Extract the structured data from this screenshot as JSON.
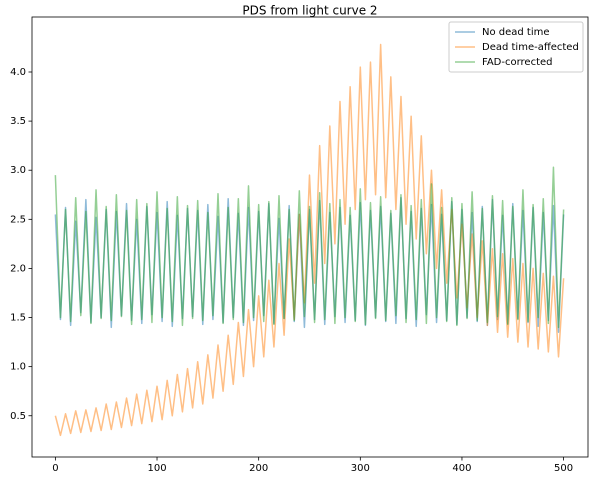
{
  "chart_data": {
    "type": "line",
    "title": "PDS from light curve 2",
    "x": [
      0,
      5,
      10,
      15,
      20,
      25,
      30,
      35,
      40,
      45,
      50,
      55,
      60,
      65,
      70,
      75,
      80,
      85,
      90,
      95,
      100,
      105,
      110,
      115,
      120,
      125,
      130,
      135,
      140,
      145,
      150,
      155,
      160,
      165,
      170,
      175,
      180,
      185,
      190,
      195,
      200,
      205,
      210,
      215,
      220,
      225,
      230,
      235,
      240,
      245,
      250,
      255,
      260,
      265,
      270,
      275,
      280,
      285,
      290,
      295,
      300,
      305,
      310,
      315,
      320,
      325,
      330,
      335,
      340,
      345,
      350,
      355,
      360,
      365,
      370,
      375,
      380,
      385,
      390,
      395,
      400,
      405,
      410,
      415,
      420,
      425,
      430,
      435,
      440,
      445,
      450,
      455,
      460,
      465,
      470,
      475,
      480,
      485,
      490,
      495,
      500
    ],
    "series": [
      {
        "name": "No dead time",
        "color": "#1f77b4",
        "values": [
          2.55,
          1.48,
          2.62,
          1.42,
          2.48,
          1.55,
          2.7,
          1.45,
          2.52,
          1.5,
          2.6,
          1.4,
          2.58,
          1.52,
          2.66,
          1.47,
          2.5,
          1.44,
          2.63,
          1.53,
          2.57,
          1.46,
          2.68,
          1.41,
          2.54,
          1.49,
          2.61,
          1.51,
          2.59,
          1.43,
          2.65,
          1.48,
          2.53,
          1.45,
          2.71,
          1.5,
          2.56,
          1.42,
          2.62,
          1.47,
          2.58,
          1.52,
          2.66,
          1.44,
          2.51,
          1.49,
          2.64,
          1.46,
          2.55,
          1.4,
          2.6,
          1.48,
          2.69,
          1.43,
          2.57,
          1.51,
          2.62,
          1.45,
          2.54,
          1.47,
          2.67,
          1.42,
          2.59,
          1.5,
          2.63,
          1.46,
          2.56,
          1.44,
          2.72,
          1.49,
          2.58,
          1.41,
          2.61,
          1.53,
          2.65,
          1.45,
          2.55,
          1.47,
          2.68,
          1.43,
          2.6,
          1.5,
          2.57,
          1.46,
          2.63,
          1.42,
          2.7,
          1.48,
          2.54,
          1.44,
          2.66,
          1.49,
          2.59,
          1.45,
          2.62,
          1.41,
          2.57,
          1.47,
          2.64,
          1.35,
          2.55
        ]
      },
      {
        "name": "Dead time-affected",
        "color": "#ff7f0e",
        "values": [
          0.5,
          0.3,
          0.52,
          0.32,
          0.55,
          0.33,
          0.56,
          0.34,
          0.58,
          0.35,
          0.62,
          0.36,
          0.64,
          0.38,
          0.68,
          0.4,
          0.72,
          0.42,
          0.76,
          0.44,
          0.8,
          0.46,
          0.86,
          0.5,
          0.92,
          0.54,
          0.98,
          0.58,
          1.05,
          0.62,
          1.12,
          0.68,
          1.22,
          0.75,
          1.32,
          0.82,
          1.45,
          0.9,
          1.58,
          1.0,
          1.72,
          1.1,
          1.88,
          1.2,
          2.05,
          1.32,
          2.3,
          1.48,
          2.55,
          1.65,
          2.95,
          1.85,
          3.25,
          2.05,
          3.45,
          2.25,
          3.7,
          2.45,
          3.85,
          2.6,
          4.05,
          2.7,
          4.1,
          2.75,
          4.28,
          2.72,
          3.95,
          2.6,
          3.75,
          2.45,
          3.55,
          2.3,
          3.35,
          2.15,
          3.0,
          2.0,
          2.8,
          1.85,
          2.6,
          1.7,
          2.45,
          1.6,
          2.35,
          1.5,
          2.28,
          1.42,
          2.2,
          1.35,
          2.15,
          1.3,
          2.1,
          1.25,
          2.05,
          1.2,
          2.0,
          1.18,
          1.95,
          1.15,
          1.92,
          1.1,
          1.9
        ]
      },
      {
        "name": "FAD-corrected",
        "color": "#2ca02c",
        "values": [
          2.95,
          1.5,
          2.6,
          1.46,
          2.72,
          1.52,
          2.58,
          1.44,
          2.8,
          1.49,
          2.63,
          1.47,
          2.75,
          1.51,
          2.59,
          1.43,
          2.7,
          1.48,
          2.66,
          1.45,
          2.78,
          1.5,
          2.61,
          1.46,
          2.73,
          1.42,
          2.64,
          1.49,
          2.69,
          1.47,
          2.57,
          1.52,
          2.76,
          1.44,
          2.62,
          1.48,
          2.71,
          1.45,
          2.84,
          1.5,
          2.65,
          1.46,
          2.68,
          1.43,
          2.74,
          1.49,
          2.6,
          1.47,
          2.79,
          1.51,
          2.63,
          1.45,
          2.77,
          1.48,
          2.66,
          1.44,
          2.7,
          1.5,
          2.62,
          1.46,
          2.81,
          1.43,
          2.67,
          1.49,
          2.73,
          1.47,
          2.59,
          1.52,
          2.75,
          1.45,
          2.64,
          1.48,
          2.7,
          1.44,
          2.86,
          1.5,
          2.62,
          1.46,
          2.72,
          1.42,
          2.66,
          1.49,
          2.78,
          1.47,
          2.61,
          1.45,
          2.74,
          1.51,
          2.69,
          1.43,
          2.63,
          1.48,
          2.8,
          1.46,
          2.65,
          1.5,
          2.71,
          1.44,
          3.03,
          1.4,
          2.6
        ]
      }
    ],
    "xlim": [
      -23,
      524
    ],
    "xticks": [
      0,
      100,
      200,
      300,
      400,
      500
    ],
    "ylim": [
      0.08,
      4.56
    ],
    "yticks": [
      0.5,
      {
        "value": 1,
        "label": "1.0"
      },
      1.5,
      {
        "value": 2,
        "label": "2.0"
      },
      2.5,
      {
        "value": 3,
        "label": "3.0"
      },
      3.5,
      {
        "value": 4,
        "label": "4.0"
      }
    ],
    "legend": "upper right",
    "opacity": 0.5
  }
}
